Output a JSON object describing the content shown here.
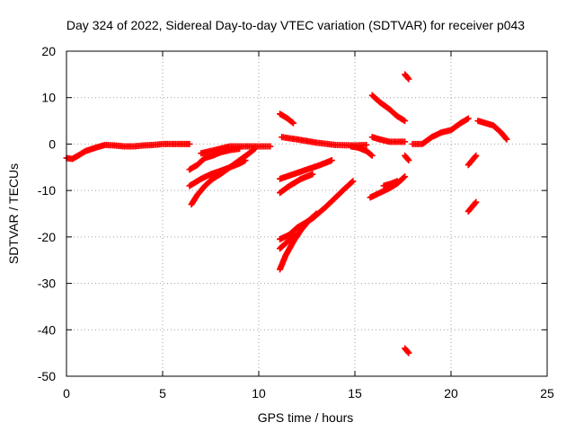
{
  "chart_data": {
    "type": "scatter",
    "title": "Day 324 of 2022, Sidereal Day-to-day VTEC variation (SDTVAR) for receiver p043",
    "xlabel": "GPS time / hours",
    "ylabel": "SDTVAR / TECUs",
    "xlim": [
      0,
      25
    ],
    "ylim": [
      -50,
      20
    ],
    "xticks": [
      0,
      5,
      10,
      15,
      20,
      25
    ],
    "yticks": [
      -50,
      -40,
      -30,
      -20,
      -10,
      0,
      10,
      20
    ],
    "grid": true,
    "marker": "+",
    "series": [
      {
        "color": "#ff0000",
        "segments": [
          [
            [
              0.0,
              -3
            ],
            [
              0.3,
              -3.2
            ],
            [
              0.6,
              -2.5
            ],
            [
              1.0,
              -1.5
            ],
            [
              1.5,
              -0.8
            ],
            [
              2.0,
              -0.2
            ],
            [
              2.5,
              -0.3
            ],
            [
              3.0,
              -0.5
            ],
            [
              3.5,
              -0.5
            ],
            [
              4.0,
              -0.3
            ],
            [
              4.5,
              -0.2
            ],
            [
              5.0,
              0.0
            ],
            [
              5.5,
              0.0
            ],
            [
              6.0,
              0.0
            ],
            [
              6.4,
              0.0
            ]
          ],
          [
            [
              6.4,
              -5.5
            ],
            [
              6.8,
              -4.5
            ],
            [
              7.2,
              -3
            ],
            [
              7.6,
              -2.5
            ],
            [
              8.0,
              -1.8
            ],
            [
              8.5,
              -1.3
            ],
            [
              9.0,
              -1.0
            ]
          ],
          [
            [
              7.0,
              -2
            ],
            [
              7.5,
              -1.5
            ],
            [
              8.0,
              -1.0
            ],
            [
              8.5,
              -0.5
            ],
            [
              9.0,
              -0.5
            ],
            [
              9.5,
              -0.5
            ],
            [
              10.0,
              -0.5
            ],
            [
              10.6,
              -0.5
            ]
          ],
          [
            [
              6.4,
              -9
            ],
            [
              7.0,
              -7.5
            ],
            [
              7.5,
              -6.5
            ],
            [
              8.0,
              -5.8
            ],
            [
              8.5,
              -5.0
            ],
            [
              9.0,
              -4.2
            ],
            [
              9.3,
              -3.5
            ]
          ],
          [
            [
              6.5,
              -13
            ],
            [
              6.8,
              -11
            ],
            [
              7.2,
              -9
            ],
            [
              7.6,
              -7.5
            ],
            [
              8.0,
              -6.5
            ],
            [
              8.5,
              -5.0
            ],
            [
              9.0,
              -3.5
            ],
            [
              9.5,
              -2.0
            ],
            [
              9.8,
              -1.0
            ]
          ],
          [
            [
              11.1,
              6.5
            ],
            [
              11.5,
              5.5
            ],
            [
              11.8,
              4.5
            ]
          ],
          [
            [
              11.2,
              1.5
            ],
            [
              12.0,
              1.0
            ],
            [
              13.0,
              0.3
            ],
            [
              14.0,
              -0.2
            ],
            [
              15.0,
              -0.3
            ],
            [
              15.6,
              -0.2
            ]
          ],
          [
            [
              14.8,
              -0.5
            ],
            [
              15.2,
              -0.8
            ],
            [
              15.6,
              -1.5
            ],
            [
              15.9,
              -2.5
            ]
          ],
          [
            [
              11.1,
              -7.5
            ],
            [
              11.8,
              -6.5
            ],
            [
              12.5,
              -5.5
            ],
            [
              13.2,
              -4.5
            ],
            [
              13.8,
              -3.5
            ]
          ],
          [
            [
              11.1,
              -10.5
            ],
            [
              11.6,
              -9.0
            ],
            [
              12.2,
              -7.5
            ],
            [
              12.8,
              -6.5
            ]
          ],
          [
            [
              11.1,
              -20.5
            ],
            [
              11.6,
              -19.5
            ],
            [
              12.0,
              -18.0
            ],
            [
              12.8,
              -16.0
            ],
            [
              13.5,
              -13.5
            ],
            [
              14.0,
              -11.5
            ],
            [
              14.5,
              -9.5
            ],
            [
              14.9,
              -8.0
            ]
          ],
          [
            [
              11.1,
              -27
            ],
            [
              11.4,
              -24
            ],
            [
              11.8,
              -21
            ],
            [
              12.2,
              -18.5
            ],
            [
              12.6,
              -16.5
            ],
            [
              13.0,
              -15.0
            ]
          ],
          [
            [
              11.1,
              -22.5
            ],
            [
              11.5,
              -21.0
            ],
            [
              11.9,
              -19.5
            ]
          ],
          [
            [
              15.9,
              10.5
            ],
            [
              16.3,
              9.0
            ],
            [
              16.8,
              7.5
            ],
            [
              17.2,
              6.0
            ],
            [
              17.6,
              5.0
            ]
          ],
          [
            [
              15.9,
              1.5
            ],
            [
              16.3,
              1.0
            ],
            [
              16.8,
              0.5
            ],
            [
              17.2,
              0.5
            ],
            [
              17.6,
              0.5
            ]
          ],
          [
            [
              15.8,
              -11.5
            ],
            [
              16.3,
              -10.5
            ],
            [
              16.8,
              -9.5
            ],
            [
              17.2,
              -8.5
            ],
            [
              17.6,
              -7.0
            ]
          ],
          [
            [
              16.5,
              -9.0
            ],
            [
              16.9,
              -8.5
            ],
            [
              17.2,
              -8.0
            ]
          ],
          [
            [
              17.6,
              15
            ],
            [
              17.8,
              14.0
            ]
          ],
          [
            [
              17.6,
              -2.5
            ],
            [
              17.8,
              -3.5
            ]
          ],
          [
            [
              17.6,
              -44
            ],
            [
              17.8,
              -45
            ]
          ],
          [
            [
              18.0,
              0
            ],
            [
              18.5,
              0
            ],
            [
              19.0,
              1.5
            ],
            [
              19.5,
              2.5
            ],
            [
              20.0,
              3.0
            ],
            [
              20.5,
              4.5
            ],
            [
              20.9,
              5.5
            ]
          ],
          [
            [
              20.9,
              -4.5
            ],
            [
              21.1,
              -3.5
            ],
            [
              21.3,
              -2.5
            ]
          ],
          [
            [
              20.9,
              -14.5
            ],
            [
              21.1,
              -13.5
            ],
            [
              21.3,
              -12.5
            ]
          ],
          [
            [
              21.4,
              5.0
            ],
            [
              21.8,
              4.5
            ],
            [
              22.2,
              4.0
            ],
            [
              22.6,
              2.5
            ],
            [
              22.9,
              1.0
            ]
          ]
        ]
      }
    ]
  }
}
